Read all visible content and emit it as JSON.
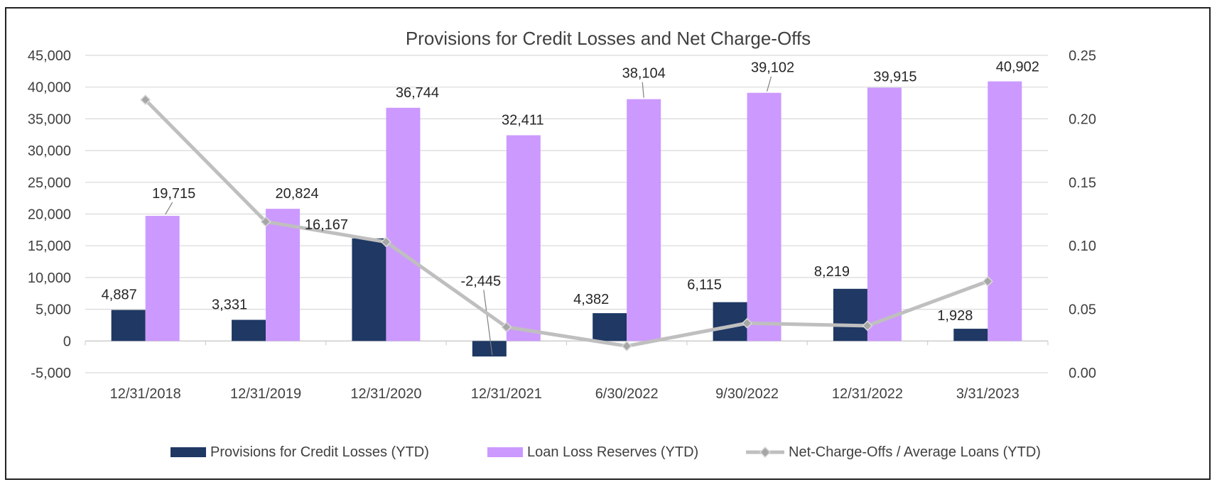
{
  "chart_data": {
    "type": "bar",
    "title": "Provisions for Credit Losses and Net Charge-Offs",
    "categories": [
      "12/31/2018",
      "12/31/2019",
      "12/31/2020",
      "12/31/2021",
      "6/30/2022",
      "9/30/2022",
      "12/31/2022",
      "3/31/2023"
    ],
    "y_left": {
      "min": -5000,
      "max": 45000,
      "step": 5000,
      "ticks": [
        "-5,000",
        "0",
        "5,000",
        "10,000",
        "15,000",
        "20,000",
        "25,000",
        "30,000",
        "35,000",
        "40,000",
        "45,000"
      ]
    },
    "y_right": {
      "min": 0,
      "max": 0.25,
      "step": 0.05,
      "ticks": [
        "0.00",
        "0.05",
        "0.10",
        "0.15",
        "0.20",
        "0.25"
      ]
    },
    "grid": true,
    "legend_position": "bottom",
    "series": [
      {
        "name": "Provisions for Credit Losses (YTD)",
        "type": "bar",
        "axis": "left",
        "color": "#1f3864",
        "values": [
          4887,
          3331,
          16167,
          -2445,
          4382,
          6115,
          8219,
          1928
        ],
        "labels": [
          "4,887",
          "3,331",
          "16,167",
          "-2,445",
          "4,382",
          "6,115",
          "8,219",
          "1,928"
        ]
      },
      {
        "name": "Loan Loss Reserves (YTD)",
        "type": "bar",
        "axis": "left",
        "color": "#cc99ff",
        "values": [
          19715,
          20824,
          36744,
          32411,
          38104,
          39102,
          39915,
          40902
        ],
        "labels": [
          "19,715",
          "20,824",
          "36,744",
          "32,411",
          "38,104",
          "39,102",
          "39,915",
          "40,902"
        ]
      },
      {
        "name": "Net-Charge-Offs / Average Loans (YTD)",
        "type": "line",
        "axis": "right",
        "color": "#bfbfbf",
        "marker": "diamond",
        "values": [
          0.215,
          0.119,
          0.103,
          0.036,
          0.021,
          0.039,
          0.037,
          0.072
        ]
      }
    ]
  }
}
